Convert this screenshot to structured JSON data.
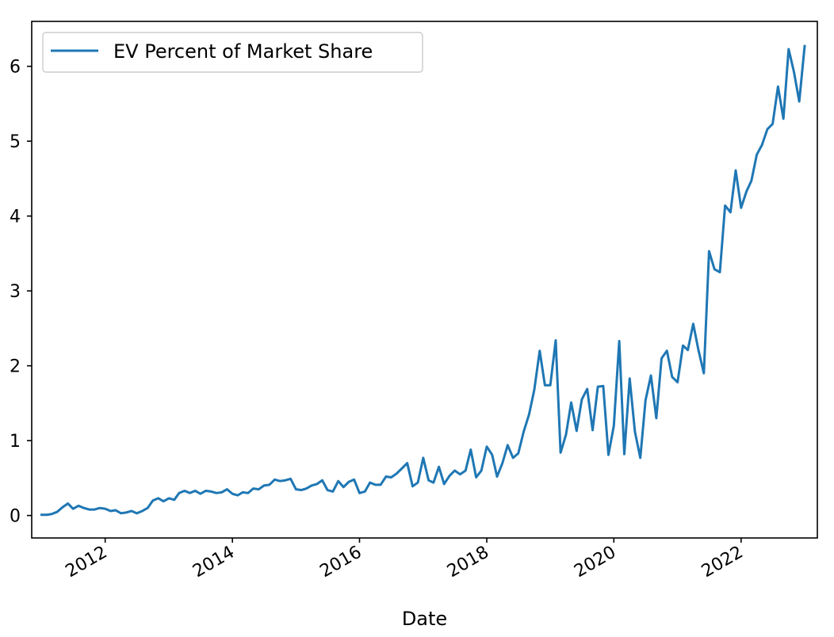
{
  "chart_data": {
    "type": "line",
    "title": "",
    "xlabel": "Date",
    "ylabel": "",
    "xlim": [
      "2010-11-05",
      "2023-03-15"
    ],
    "ylim": [
      -0.3,
      6.6
    ],
    "x_ticks": [
      {
        "date": "2012-01-01",
        "label": "2012"
      },
      {
        "date": "2014-01-01",
        "label": "2014"
      },
      {
        "date": "2016-01-01",
        "label": "2016"
      },
      {
        "date": "2018-01-01",
        "label": "2018"
      },
      {
        "date": "2020-01-01",
        "label": "2020"
      },
      {
        "date": "2022-01-01",
        "label": "2022"
      }
    ],
    "y_ticks": [
      0,
      1,
      2,
      3,
      4,
      5,
      6
    ],
    "grid": false,
    "legend": {
      "placement": "top-left",
      "entries": [
        "EV Percent of Market Share"
      ]
    },
    "series": [
      {
        "name": "EV Percent of Market Share",
        "color": "#1f77b4",
        "points": [
          [
            "2011-01",
            0.01
          ],
          [
            "2011-02",
            0.01
          ],
          [
            "2011-03",
            0.02
          ],
          [
            "2011-04",
            0.05
          ],
          [
            "2011-05",
            0.11
          ],
          [
            "2011-06",
            0.16
          ],
          [
            "2011-07",
            0.09
          ],
          [
            "2011-08",
            0.13
          ],
          [
            "2011-09",
            0.1
          ],
          [
            "2011-10",
            0.08
          ],
          [
            "2011-11",
            0.08
          ],
          [
            "2011-12",
            0.1
          ],
          [
            "2012-01",
            0.09
          ],
          [
            "2012-02",
            0.06
          ],
          [
            "2012-03",
            0.07
          ],
          [
            "2012-04",
            0.03
          ],
          [
            "2012-05",
            0.04
          ],
          [
            "2012-06",
            0.06
          ],
          [
            "2012-07",
            0.03
          ],
          [
            "2012-08",
            0.06
          ],
          [
            "2012-09",
            0.1
          ],
          [
            "2012-10",
            0.2
          ],
          [
            "2012-11",
            0.23
          ],
          [
            "2012-12",
            0.19
          ],
          [
            "2013-01",
            0.23
          ],
          [
            "2013-02",
            0.21
          ],
          [
            "2013-03",
            0.3
          ],
          [
            "2013-04",
            0.33
          ],
          [
            "2013-05",
            0.3
          ],
          [
            "2013-06",
            0.33
          ],
          [
            "2013-07",
            0.29
          ],
          [
            "2013-08",
            0.33
          ],
          [
            "2013-09",
            0.32
          ],
          [
            "2013-10",
            0.3
          ],
          [
            "2013-11",
            0.31
          ],
          [
            "2013-12",
            0.35
          ],
          [
            "2014-01",
            0.29
          ],
          [
            "2014-02",
            0.27
          ],
          [
            "2014-03",
            0.31
          ],
          [
            "2014-04",
            0.3
          ],
          [
            "2014-05",
            0.36
          ],
          [
            "2014-06",
            0.35
          ],
          [
            "2014-07",
            0.4
          ],
          [
            "2014-08",
            0.41
          ],
          [
            "2014-09",
            0.48
          ],
          [
            "2014-10",
            0.46
          ],
          [
            "2014-11",
            0.47
          ],
          [
            "2014-12",
            0.49
          ],
          [
            "2015-01",
            0.35
          ],
          [
            "2015-02",
            0.34
          ],
          [
            "2015-03",
            0.36
          ],
          [
            "2015-04",
            0.4
          ],
          [
            "2015-05",
            0.42
          ],
          [
            "2015-06",
            0.47
          ],
          [
            "2015-07",
            0.34
          ],
          [
            "2015-08",
            0.32
          ],
          [
            "2015-09",
            0.46
          ],
          [
            "2015-10",
            0.38
          ],
          [
            "2015-11",
            0.45
          ],
          [
            "2015-12",
            0.48
          ],
          [
            "2016-01",
            0.3
          ],
          [
            "2016-02",
            0.32
          ],
          [
            "2016-03",
            0.44
          ],
          [
            "2016-04",
            0.41
          ],
          [
            "2016-05",
            0.41
          ],
          [
            "2016-06",
            0.52
          ],
          [
            "2016-07",
            0.51
          ],
          [
            "2016-08",
            0.56
          ],
          [
            "2016-09",
            0.63
          ],
          [
            "2016-10",
            0.7
          ],
          [
            "2016-11",
            0.39
          ],
          [
            "2016-12",
            0.44
          ],
          [
            "2017-01",
            0.77
          ],
          [
            "2017-02",
            0.47
          ],
          [
            "2017-03",
            0.44
          ],
          [
            "2017-04",
            0.65
          ],
          [
            "2017-05",
            0.42
          ],
          [
            "2017-06",
            0.53
          ],
          [
            "2017-07",
            0.6
          ],
          [
            "2017-08",
            0.55
          ],
          [
            "2017-09",
            0.6
          ],
          [
            "2017-10",
            0.88
          ],
          [
            "2017-11",
            0.51
          ],
          [
            "2017-12",
            0.6
          ],
          [
            "2018-01",
            0.92
          ],
          [
            "2018-02",
            0.81
          ],
          [
            "2018-03",
            0.52
          ],
          [
            "2018-04",
            0.7
          ],
          [
            "2018-05",
            0.94
          ],
          [
            "2018-06",
            0.77
          ],
          [
            "2018-07",
            0.83
          ],
          [
            "2018-08",
            1.12
          ],
          [
            "2018-09",
            1.35
          ],
          [
            "2018-10",
            1.68
          ],
          [
            "2018-11",
            2.2
          ],
          [
            "2018-12",
            1.74
          ],
          [
            "2019-01",
            1.74
          ],
          [
            "2019-02",
            2.34
          ],
          [
            "2019-03",
            0.84
          ],
          [
            "2019-04",
            1.08
          ],
          [
            "2019-05",
            1.51
          ],
          [
            "2019-06",
            1.13
          ],
          [
            "2019-07",
            1.55
          ],
          [
            "2019-08",
            1.69
          ],
          [
            "2019-09",
            1.14
          ],
          [
            "2019-10",
            1.72
          ],
          [
            "2019-11",
            1.73
          ],
          [
            "2019-12",
            0.81
          ],
          [
            "2020-01",
            1.2
          ],
          [
            "2020-02",
            2.33
          ],
          [
            "2020-03",
            0.82
          ],
          [
            "2020-04",
            1.83
          ],
          [
            "2020-05",
            1.12
          ],
          [
            "2020-06",
            0.77
          ],
          [
            "2020-07",
            1.54
          ],
          [
            "2020-08",
            1.87
          ],
          [
            "2020-09",
            1.3
          ],
          [
            "2020-10",
            2.1
          ],
          [
            "2020-11",
            2.2
          ],
          [
            "2020-12",
            1.85
          ],
          [
            "2021-01",
            1.78
          ],
          [
            "2021-02",
            2.27
          ],
          [
            "2021-03",
            2.21
          ],
          [
            "2021-04",
            2.56
          ],
          [
            "2021-05",
            2.21
          ],
          [
            "2021-06",
            1.9
          ],
          [
            "2021-07",
            3.53
          ],
          [
            "2021-08",
            3.29
          ],
          [
            "2021-09",
            3.25
          ],
          [
            "2021-10",
            4.14
          ],
          [
            "2021-11",
            4.05
          ],
          [
            "2021-12",
            4.61
          ],
          [
            "2022-01",
            4.11
          ],
          [
            "2022-02",
            4.33
          ],
          [
            "2022-03",
            4.47
          ],
          [
            "2022-04",
            4.82
          ],
          [
            "2022-05",
            4.95
          ],
          [
            "2022-06",
            5.16
          ],
          [
            "2022-07",
            5.23
          ],
          [
            "2022-08",
            5.73
          ],
          [
            "2022-09",
            5.3
          ],
          [
            "2022-10",
            6.23
          ],
          [
            "2022-11",
            5.92
          ],
          [
            "2022-12",
            5.53
          ],
          [
            "2023-01",
            6.27
          ]
        ]
      }
    ]
  }
}
